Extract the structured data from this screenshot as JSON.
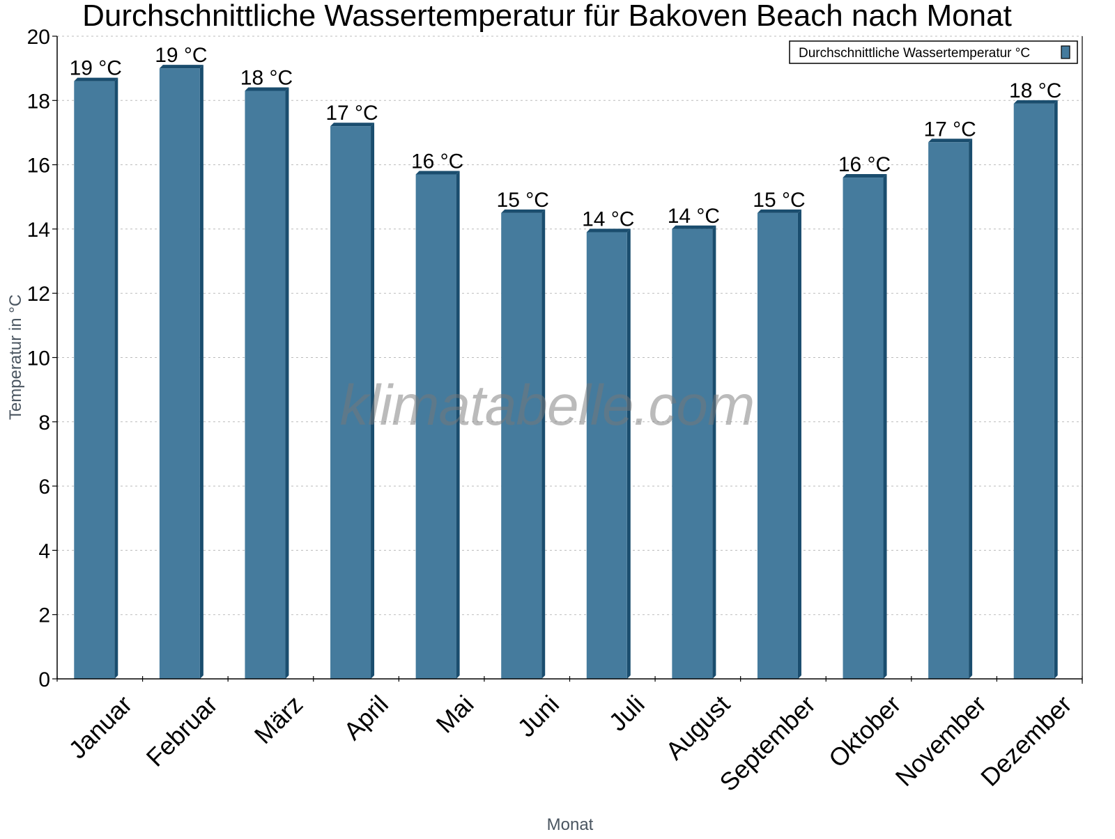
{
  "chart_data": {
    "type": "bar",
    "title": "Durchschnittliche Wassertemperatur für Bakoven Beach nach Monat",
    "xlabel": "Monat",
    "ylabel": "Temperatur in °C",
    "categories": [
      "Januar",
      "Februar",
      "März",
      "April",
      "Mai",
      "Juni",
      "Juli",
      "August",
      "September",
      "Oktober",
      "November",
      "Dezember"
    ],
    "series": [
      {
        "name": "Durchschnittliche Wassertemperatur °C",
        "values": [
          18.6,
          19.0,
          18.3,
          17.2,
          15.7,
          14.5,
          13.9,
          14.0,
          14.5,
          15.6,
          16.7,
          17.9
        ],
        "labels": [
          "19 °C",
          "19 °C",
          "18 °C",
          "17 °C",
          "16 °C",
          "15 °C",
          "14 °C",
          "14 °C",
          "15 °C",
          "16 °C",
          "17 °C",
          "18 °C"
        ],
        "color": "#457b9d",
        "side_color": "#1a4d6e"
      }
    ],
    "ylim": [
      0,
      20
    ],
    "yticks": [
      0,
      2,
      4,
      6,
      8,
      10,
      12,
      14,
      16,
      18,
      20
    ],
    "grid": true,
    "legend_position": "top-right",
    "watermark": "klimatabelle.com"
  }
}
